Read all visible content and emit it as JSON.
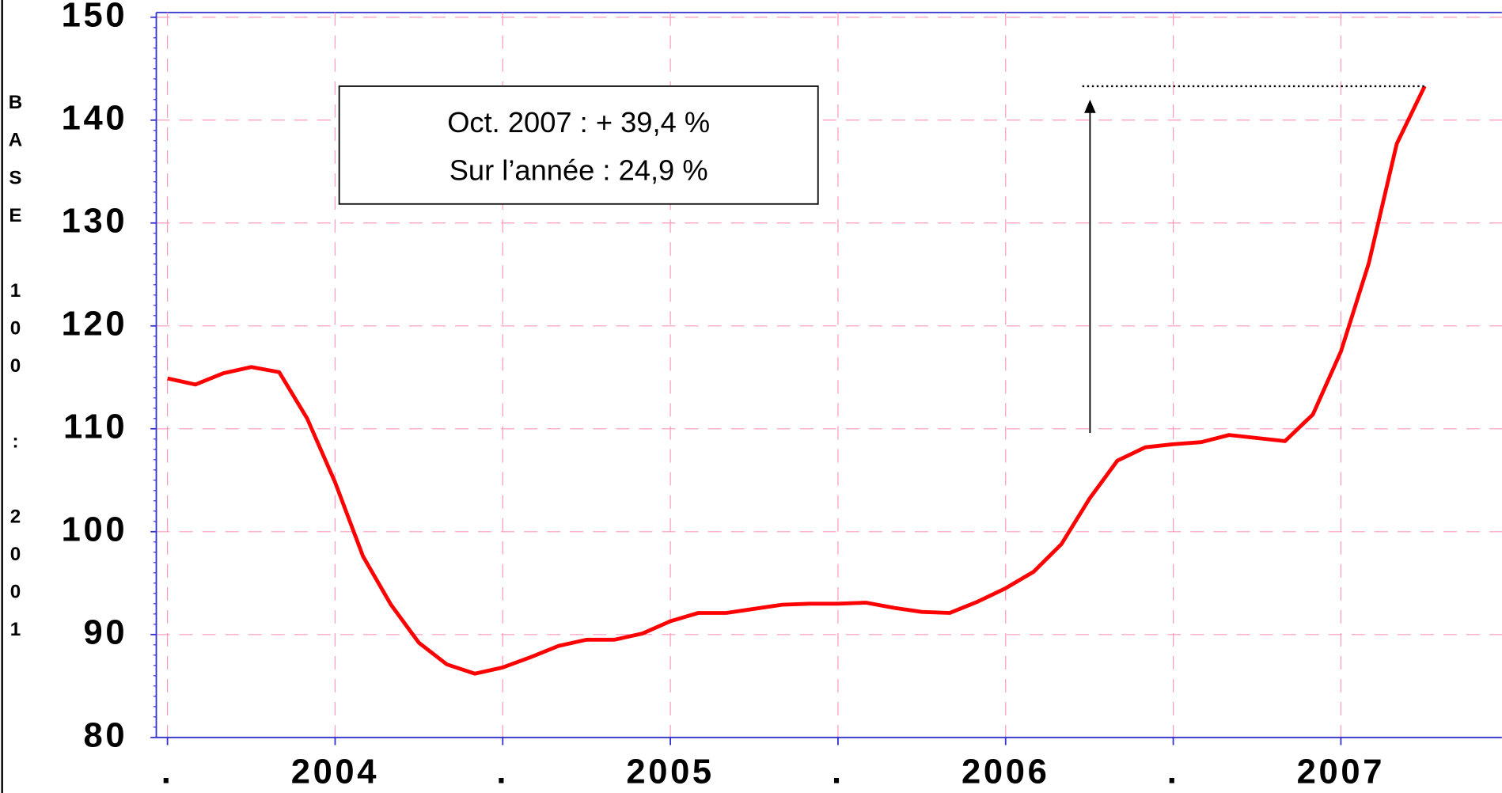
{
  "chart_data": {
    "type": "line",
    "y_label": "BASE 100 : 2001",
    "annotations": [
      "Oct. 2007 : + 39,4 %",
      "Sur l’année : 24,9 %"
    ],
    "x": [
      0,
      1,
      2,
      3,
      4,
      5,
      6,
      7,
      8,
      9,
      10,
      11,
      12,
      13,
      14,
      15,
      16,
      17,
      18,
      19,
      20,
      21,
      22,
      23,
      24,
      25,
      26,
      27,
      28,
      29,
      30,
      31,
      32,
      33,
      34,
      35,
      36,
      37,
      38,
      39,
      40,
      41,
      42,
      43,
      44,
      45
    ],
    "series": [
      {
        "color": "#ff0000",
        "values": [
          114.9,
          114.3,
          115.4,
          116.0,
          115.5,
          111.0,
          104.8,
          97.6,
          92.9,
          89.2,
          87.1,
          86.2,
          86.8,
          87.8,
          88.9,
          89.5,
          89.5,
          90.1,
          91.3,
          92.1,
          92.1,
          92.5,
          92.9,
          93.0,
          93.0,
          93.1,
          92.6,
          92.2,
          92.1,
          93.2,
          94.5,
          96.1,
          98.8,
          103.2,
          106.9,
          108.2,
          108.5,
          108.7,
          109.4,
          109.1,
          108.8,
          111.4,
          117.5,
          126.1,
          137.7,
          143.3
        ]
      }
    ],
    "xlim": [
      -0.4,
      48
    ],
    "xticks": [
      {
        "value": 0,
        "label": "."
      },
      {
        "value": 6,
        "label": "2004"
      },
      {
        "value": 12,
        "label": "."
      },
      {
        "value": 18,
        "label": "2005"
      },
      {
        "value": 24,
        "label": "."
      },
      {
        "value": 30,
        "label": "2006"
      },
      {
        "value": 36,
        "label": "."
      },
      {
        "value": 42,
        "label": "2007"
      },
      {
        "value": 48,
        "label": "."
      }
    ],
    "ylim": [
      80,
      150
    ],
    "yticks": [
      80,
      90,
      100,
      110,
      120,
      130,
      140,
      150
    ],
    "grid": true
  }
}
